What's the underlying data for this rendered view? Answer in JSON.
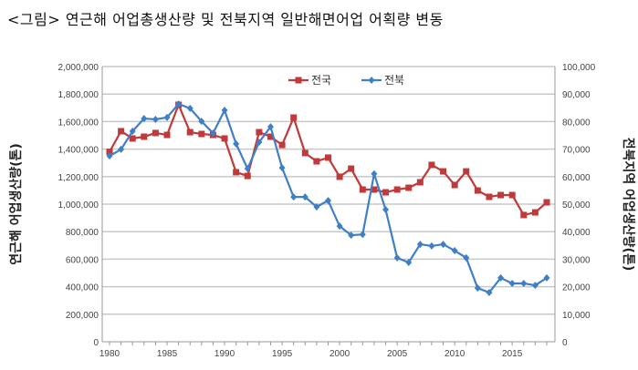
{
  "title": "<그림> 연근해 어업총생산량 및 전북지역 일반해면어업 어획량 변동",
  "chart_data": {
    "type": "line",
    "title": "<그림> 연근해 어업총생산량 및 전북지역 일반해면어업 어획량 변동",
    "ylabel": "연근해 어업생산량(톤)",
    "y2label": "전북지역 어업생산량(톤)",
    "ylim": [
      0,
      2000000
    ],
    "y2lim": [
      0,
      100000
    ],
    "yticks": [
      "0",
      "200,000",
      "400,000",
      "600,000",
      "800,000",
      "1,000,000",
      "1,200,000",
      "1,400,000",
      "1,600,000",
      "1,800,000",
      "2,000,000"
    ],
    "y2ticks": [
      "0",
      "10,000",
      "20,000",
      "30,000",
      "40,000",
      "50,000",
      "60,000",
      "70,000",
      "80,000",
      "90,000",
      "100,000"
    ],
    "xticks": [
      "1980",
      "1985",
      "1990",
      "1995",
      "2000",
      "2005",
      "2010",
      "2015"
    ],
    "xlim": [
      1980,
      2018
    ],
    "grid": true,
    "legend_position": "top-center",
    "x": [
      1980,
      1981,
      1982,
      1983,
      1984,
      1985,
      1986,
      1987,
      1988,
      1989,
      1990,
      1991,
      1992,
      1993,
      1994,
      1995,
      1996,
      1997,
      1998,
      1999,
      2000,
      2001,
      2002,
      2003,
      2004,
      2005,
      2006,
      2007,
      2008,
      2009,
      2010,
      2011,
      2012,
      2013,
      2014,
      2015,
      2016,
      2017,
      2018
    ],
    "series": [
      {
        "name": "전국",
        "axis": "left",
        "color": "#c0393b",
        "marker": "square",
        "values": [
          1380000,
          1530000,
          1477000,
          1490000,
          1517000,
          1503000,
          1722000,
          1523000,
          1510000,
          1503000,
          1477000,
          1232000,
          1205000,
          1523000,
          1490000,
          1430000,
          1629000,
          1371000,
          1311000,
          1338000,
          1199000,
          1258000,
          1106000,
          1106000,
          1086000,
          1106000,
          1119000,
          1159000,
          1285000,
          1238000,
          1139000,
          1238000,
          1099000,
          1053000,
          1066000,
          1066000,
          921000,
          940000,
          1013000
        ]
      },
      {
        "name": "전북",
        "axis": "right",
        "color": "#3f7fc6",
        "marker": "diamond",
        "values": [
          67500,
          69900,
          76500,
          81100,
          80800,
          81500,
          86400,
          84800,
          80100,
          75800,
          84100,
          71900,
          62900,
          72500,
          78100,
          63200,
          52600,
          52600,
          49000,
          51300,
          42000,
          38700,
          39000,
          61000,
          48000,
          30500,
          28800,
          35400,
          34800,
          35400,
          33100,
          30500,
          19500,
          17900,
          23200,
          21200,
          21200,
          20500,
          23200
        ]
      }
    ]
  }
}
